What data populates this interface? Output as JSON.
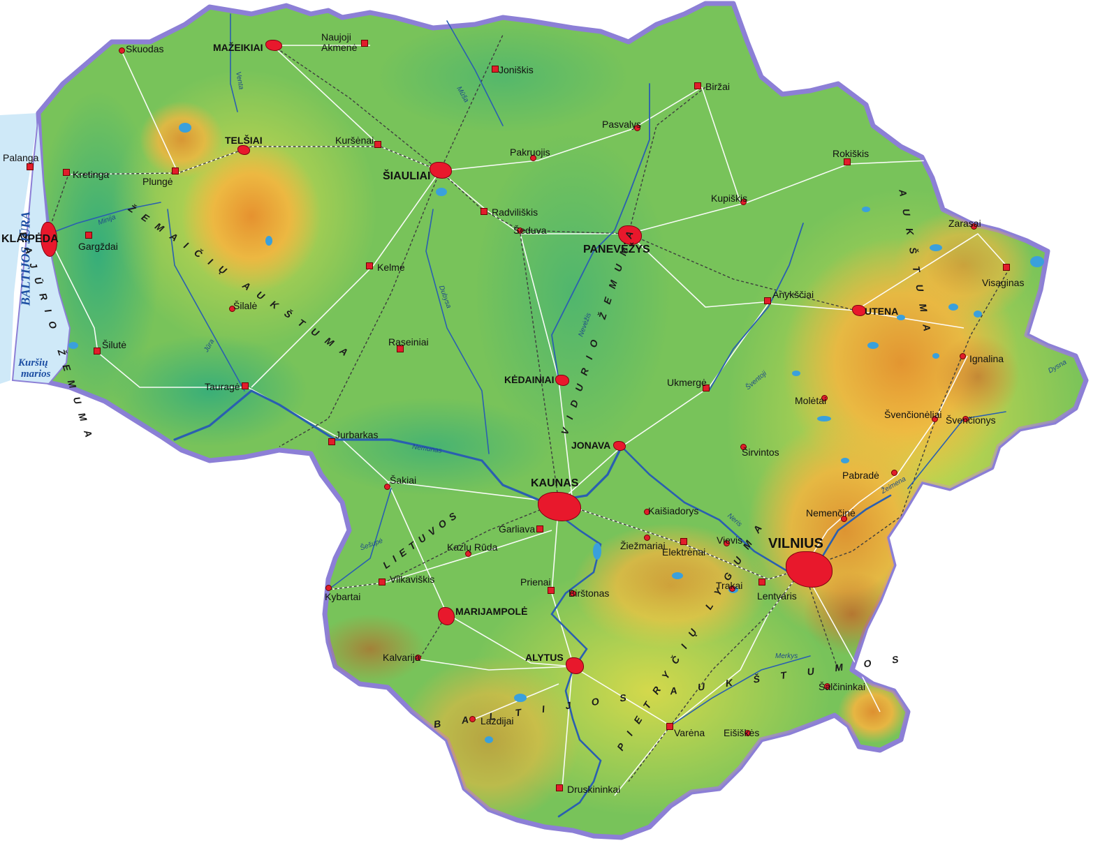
{
  "colors": {
    "background": "#ffffff",
    "sea": "#cfe9f8",
    "border": "#8c7fd6",
    "lowland": "#2fb38a",
    "plain": "#7cc95a",
    "upland": "#d6d84a",
    "highland": "#eea333",
    "peak": "#c9742c",
    "river": "#2a5fb0",
    "lake": "#3aa0dc",
    "road": "#ffffff",
    "railway": "#444444",
    "city": "#e8182c"
  },
  "cities": [
    {
      "id": "vilnius",
      "name": "VILNIUS",
      "type": "capital"
    },
    {
      "id": "kaunas",
      "name": "KAUNAS",
      "type": "major"
    },
    {
      "id": "klaipeda",
      "name": "KLAIPĖDA",
      "type": "major"
    },
    {
      "id": "siauliai",
      "name": "ŠIAULIAI",
      "type": "major"
    },
    {
      "id": "panevezys",
      "name": "PANEVĖŽYS",
      "type": "major"
    },
    {
      "id": "mazeikiai",
      "name": "MAŽEIKIAI",
      "type": "town"
    },
    {
      "id": "telsiai",
      "name": "TELŠIAI",
      "type": "town"
    },
    {
      "id": "utena",
      "name": "UTENA",
      "type": "town"
    },
    {
      "id": "kedainiai",
      "name": "KĖDAINIAI",
      "type": "town"
    },
    {
      "id": "jonava",
      "name": "JONAVA",
      "type": "town"
    },
    {
      "id": "marijampole",
      "name": "MARIJAMPOLĖ",
      "type": "town"
    },
    {
      "id": "alytus",
      "name": "ALYTUS",
      "type": "town"
    },
    {
      "id": "skuodas",
      "name": "Skuodas",
      "type": "small"
    },
    {
      "id": "naujoji-akmene",
      "name": "Naujoji Akmenė",
      "type": "small"
    },
    {
      "id": "joniskis",
      "name": "Joniškis",
      "type": "small"
    },
    {
      "id": "birzai",
      "name": "Biržai",
      "type": "small"
    },
    {
      "id": "palanga",
      "name": "Palanga",
      "type": "small"
    },
    {
      "id": "kretinga",
      "name": "Kretinga",
      "type": "small"
    },
    {
      "id": "plunge",
      "name": "Plungė",
      "type": "small"
    },
    {
      "id": "kursenai",
      "name": "Kuršėnai",
      "type": "small"
    },
    {
      "id": "pasvalys",
      "name": "Pasvalys",
      "type": "small"
    },
    {
      "id": "pakruojis",
      "name": "Pakruojis",
      "type": "small"
    },
    {
      "id": "rokiskis",
      "name": "Rokiškis",
      "type": "small"
    },
    {
      "id": "kupiskis",
      "name": "Kupiškis",
      "type": "small"
    },
    {
      "id": "radviliskis",
      "name": "Radviliškis",
      "type": "small"
    },
    {
      "id": "seduva",
      "name": "Šeduva",
      "type": "small"
    },
    {
      "id": "gargzdai",
      "name": "Gargždai",
      "type": "small"
    },
    {
      "id": "zarasai",
      "name": "Zarasai",
      "type": "small"
    },
    {
      "id": "kelme",
      "name": "Kelmė",
      "type": "small"
    },
    {
      "id": "visaginas",
      "name": "Visaginas",
      "type": "small"
    },
    {
      "id": "anyksciai",
      "name": "Anykščiai",
      "type": "small"
    },
    {
      "id": "silale",
      "name": "Šilalė",
      "type": "small"
    },
    {
      "id": "silute",
      "name": "Šilutė",
      "type": "small"
    },
    {
      "id": "raseiniai",
      "name": "Raseiniai",
      "type": "small"
    },
    {
      "id": "ignalina",
      "name": "Ignalina",
      "type": "small"
    },
    {
      "id": "taurage",
      "name": "Tauragė",
      "type": "small"
    },
    {
      "id": "ukmerge",
      "name": "Ukmergė",
      "type": "small"
    },
    {
      "id": "moletai",
      "name": "Molėtai",
      "type": "small"
    },
    {
      "id": "svencioneliai",
      "name": "Švenčionėliai",
      "type": "small"
    },
    {
      "id": "svencionys",
      "name": "Švenčionys",
      "type": "small"
    },
    {
      "id": "jurbarkas",
      "name": "Jurbarkas",
      "type": "small"
    },
    {
      "id": "sirvintos",
      "name": "Širvintos",
      "type": "small"
    },
    {
      "id": "sakiai",
      "name": "Šakiai",
      "type": "small"
    },
    {
      "id": "pabrade",
      "name": "Pabradė",
      "type": "small"
    },
    {
      "id": "kaisiadorys",
      "name": "Kaišiadorys",
      "type": "small"
    },
    {
      "id": "nemencine",
      "name": "Nemenčinė",
      "type": "small"
    },
    {
      "id": "garliava",
      "name": "Garliava",
      "type": "small"
    },
    {
      "id": "kazlu-ruda",
      "name": "Kazlų Rūda",
      "type": "small"
    },
    {
      "id": "ziezmariai",
      "name": "Žiežmariai",
      "type": "small"
    },
    {
      "id": "elektrenai",
      "name": "Elektrėnai",
      "type": "small"
    },
    {
      "id": "vievis",
      "name": "Vievis",
      "type": "small"
    },
    {
      "id": "vilkaviskis",
      "name": "Vilkaviškis",
      "type": "small"
    },
    {
      "id": "prienai",
      "name": "Prienai",
      "type": "small"
    },
    {
      "id": "trakai",
      "name": "Trakai",
      "type": "small"
    },
    {
      "id": "lentvaris",
      "name": "Lentvaris",
      "type": "small"
    },
    {
      "id": "kybartai",
      "name": "Kybartai",
      "type": "small"
    },
    {
      "id": "birstonas",
      "name": "Birštonas",
      "type": "small"
    },
    {
      "id": "kalvarija",
      "name": "Kalvarija",
      "type": "small"
    },
    {
      "id": "salcininkai",
      "name": "Šalčininkai",
      "type": "small"
    },
    {
      "id": "lazdijai",
      "name": "Lazdijai",
      "type": "small"
    },
    {
      "id": "varena",
      "name": "Varėna",
      "type": "small"
    },
    {
      "id": "eisiskes",
      "name": "Eišiškės",
      "type": "small"
    },
    {
      "id": "druskininkai",
      "name": "Druskininkai",
      "type": "small"
    }
  ],
  "regions": [
    {
      "id": "zemaiciu-aukstuma",
      "text": "ŽEMAIČIŲ AUKŠTUMA"
    },
    {
      "id": "pajurio-zemuma",
      "text": "PAJŪRIO ŽEMUMA"
    },
    {
      "id": "vidurio-zemuma",
      "text": "VIDURIO ŽEMUMA"
    },
    {
      "id": "baltijos-aukstumos",
      "text": "BALTIJOS AUKŠTUMOS"
    },
    {
      "id": "ryt-lietuvos-aukstuma",
      "text": "AUKŠTUMA"
    },
    {
      "id": "pietryciu-lyguma",
      "text": "PIETRYČIŲ LYGUMA"
    },
    {
      "id": "lietuvos",
      "text": "LIETUVOS"
    }
  ],
  "sea": {
    "baltic": "BALTIJOS JŪRA",
    "lagoon_line1": "Kuršių",
    "lagoon_line2": "marios"
  },
  "rivers": [
    "Nemunas",
    "Neris",
    "Nevėžis",
    "Šventoji",
    "Dubysa",
    "Merkys",
    "Jūra",
    "Minija",
    "Venta",
    "Mūša",
    "Šešupė",
    "Žeimena",
    "Dysna"
  ]
}
